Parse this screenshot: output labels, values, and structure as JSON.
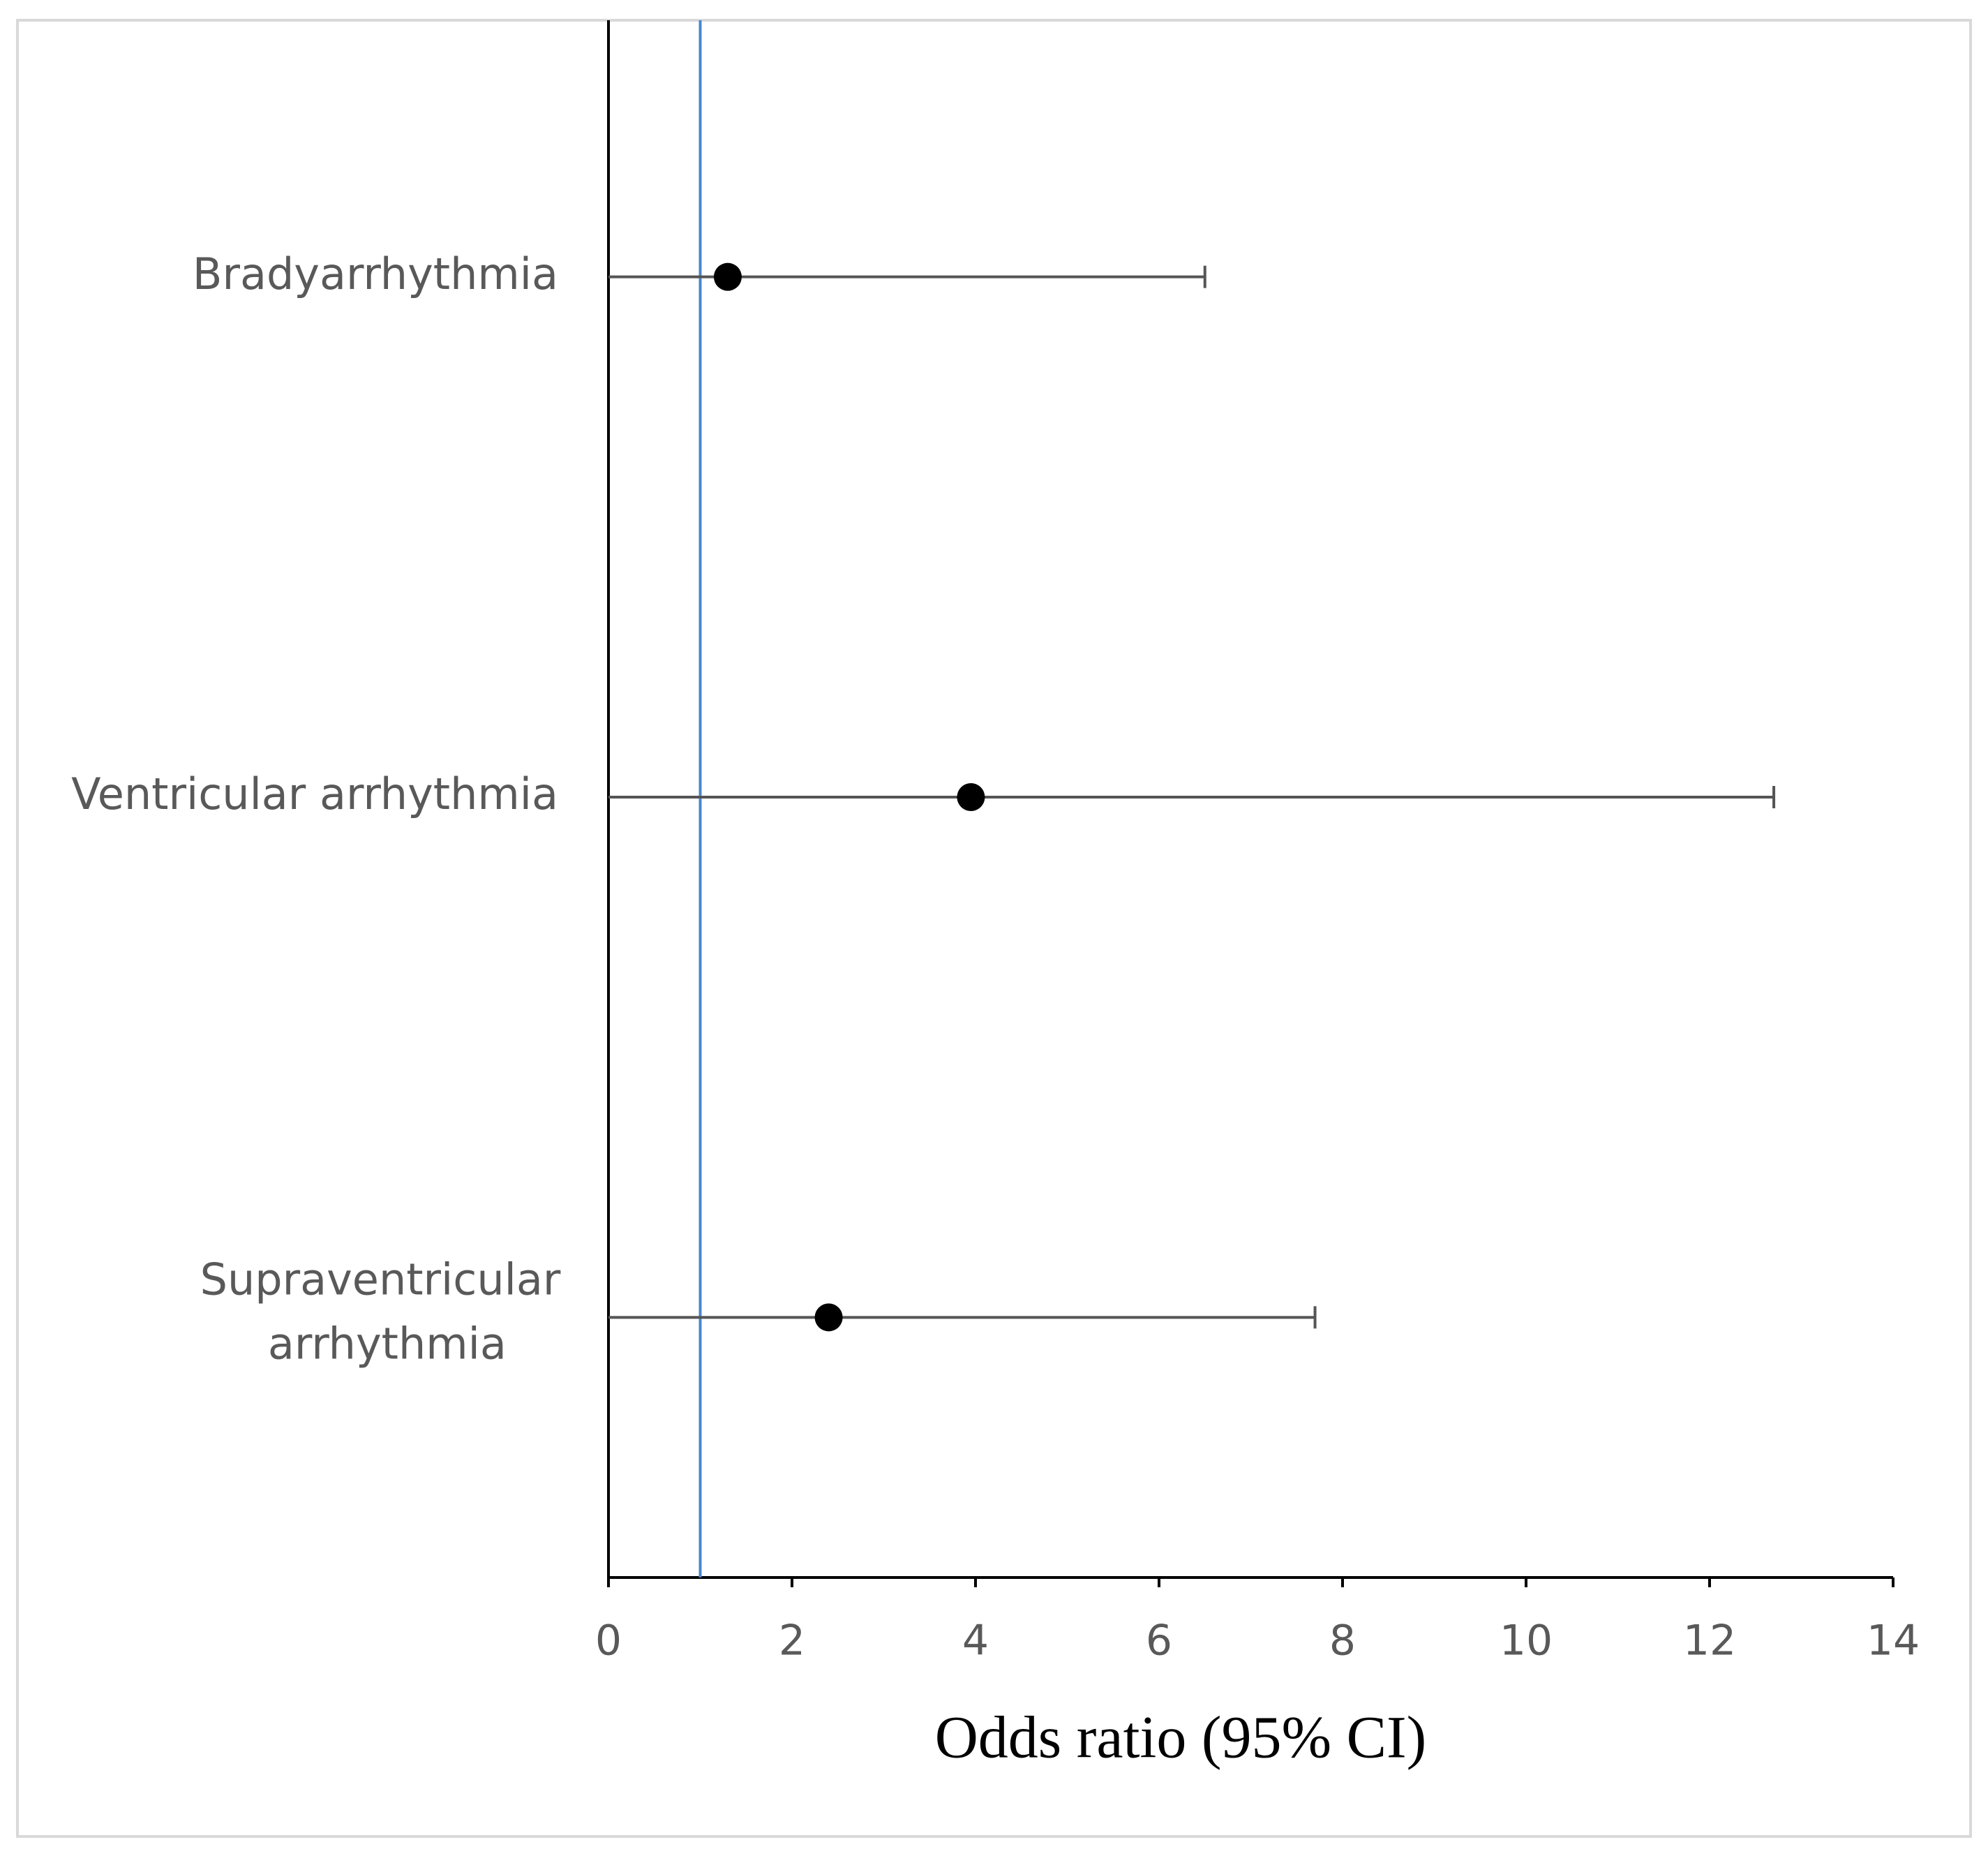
{
  "chart_data": {
    "type": "forest",
    "categories": [
      "Bradyarrhythmia",
      "Ventricular arrhythmia",
      "Supraventricular arrhythmia"
    ],
    "values": [
      1.3,
      3.95,
      2.4
    ],
    "ci_lower": [
      0,
      0,
      0
    ],
    "ci_upper": [
      6.5,
      12.7,
      7.7
    ],
    "color": "#000000",
    "error_color": "#555555",
    "reference_line": 1,
    "reference_color": "#4a86d0",
    "x_label": "Odds ratio (95% CI)",
    "xlim": [
      0,
      14
    ],
    "xticks": [
      0,
      2,
      4,
      6,
      8,
      10,
      12,
      14
    ]
  }
}
